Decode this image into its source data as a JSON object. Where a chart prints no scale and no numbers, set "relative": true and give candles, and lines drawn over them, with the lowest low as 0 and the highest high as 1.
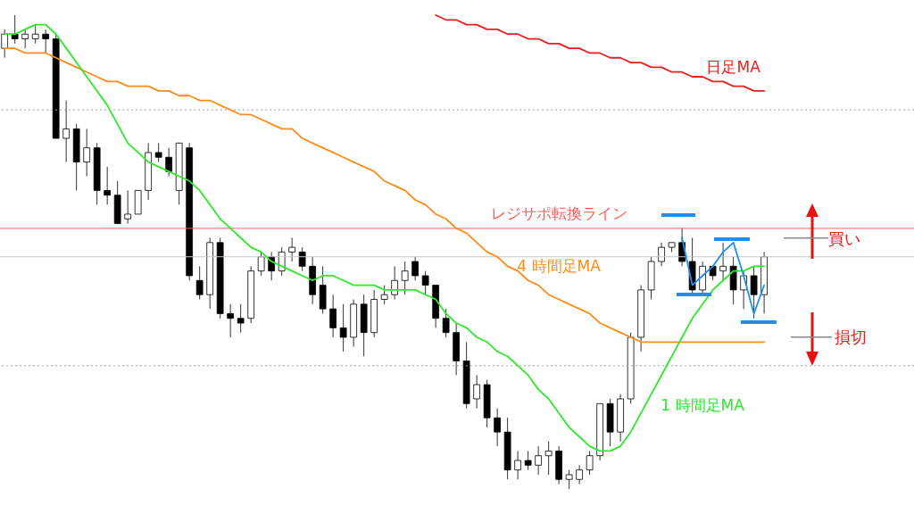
{
  "chart_data": {
    "type": "candlestick",
    "relative": true,
    "categories": [
      null,
      null,
      null,
      null,
      null,
      null,
      null,
      null,
      null,
      null,
      null,
      null,
      null,
      null,
      null,
      null,
      null,
      null,
      null,
      null,
      null,
      null,
      null,
      null,
      null,
      null,
      null,
      null,
      null,
      null,
      null,
      null,
      null,
      null,
      null,
      null,
      null,
      null,
      null,
      null,
      null,
      null,
      null,
      null,
      null,
      null,
      null,
      null,
      null,
      null,
      null,
      null,
      null,
      null,
      null,
      null,
      null,
      null,
      null,
      null,
      null,
      null,
      null,
      null,
      null,
      null,
      null,
      null,
      null,
      null,
      null,
      null,
      null,
      null,
      null
    ],
    "ohlc": [
      [
        0.93,
        0.97,
        0.91,
        0.96
      ],
      [
        0.96,
        1.0,
        0.94,
        0.95
      ],
      [
        0.95,
        0.97,
        0.93,
        0.96
      ],
      [
        0.95,
        0.98,
        0.94,
        0.96
      ],
      [
        0.96,
        0.97,
        0.92,
        0.95
      ],
      [
        0.95,
        0.96,
        0.74,
        0.74
      ],
      [
        0.74,
        0.82,
        0.69,
        0.76
      ],
      [
        0.76,
        0.77,
        0.63,
        0.69
      ],
      [
        0.69,
        0.76,
        0.66,
        0.72
      ],
      [
        0.72,
        0.73,
        0.6,
        0.63
      ],
      [
        0.63,
        0.68,
        0.6,
        0.62
      ],
      [
        0.62,
        0.65,
        0.56,
        0.56
      ],
      [
        0.57,
        0.63,
        0.56,
        0.58
      ],
      [
        0.58,
        0.63,
        0.58,
        0.63
      ],
      [
        0.63,
        0.73,
        0.61,
        0.71
      ],
      [
        0.71,
        0.73,
        0.69,
        0.7
      ],
      [
        0.7,
        0.72,
        0.66,
        0.67
      ],
      [
        0.63,
        0.73,
        0.6,
        0.73
      ],
      [
        0.72,
        0.73,
        0.44,
        0.45
      ],
      [
        0.44,
        0.47,
        0.4,
        0.41
      ],
      [
        0.41,
        0.53,
        0.38,
        0.52
      ],
      [
        0.52,
        0.53,
        0.36,
        0.37
      ],
      [
        0.37,
        0.39,
        0.32,
        0.36
      ],
      [
        0.36,
        0.39,
        0.33,
        0.35
      ],
      [
        0.36,
        0.47,
        0.35,
        0.46
      ],
      [
        0.46,
        0.5,
        0.45,
        0.49
      ],
      [
        0.49,
        0.5,
        0.44,
        0.46
      ],
      [
        0.46,
        0.51,
        0.45,
        0.5
      ],
      [
        0.5,
        0.53,
        0.48,
        0.51
      ],
      [
        0.5,
        0.51,
        0.46,
        0.47
      ],
      [
        0.47,
        0.49,
        0.39,
        0.41
      ],
      [
        0.43,
        0.47,
        0.37,
        0.38
      ],
      [
        0.38,
        0.41,
        0.32,
        0.34
      ],
      [
        0.34,
        0.39,
        0.29,
        0.32
      ],
      [
        0.32,
        0.4,
        0.3,
        0.39
      ],
      [
        0.39,
        0.41,
        0.28,
        0.33
      ],
      [
        0.33,
        0.42,
        0.32,
        0.4
      ],
      [
        0.4,
        0.43,
        0.39,
        0.41
      ],
      [
        0.41,
        0.47,
        0.4,
        0.44
      ],
      [
        0.44,
        0.48,
        0.41,
        0.46
      ],
      [
        0.48,
        0.49,
        0.44,
        0.45
      ],
      [
        0.45,
        0.46,
        0.41,
        0.43
      ],
      [
        0.43,
        0.43,
        0.34,
        0.36
      ],
      [
        0.36,
        0.38,
        0.32,
        0.33
      ],
      [
        0.33,
        0.35,
        0.24,
        0.27
      ],
      [
        0.27,
        0.31,
        0.17,
        0.18
      ],
      [
        0.19,
        0.24,
        0.17,
        0.22
      ],
      [
        0.22,
        0.23,
        0.13,
        0.15
      ],
      [
        0.15,
        0.17,
        0.09,
        0.12
      ],
      [
        0.12,
        0.15,
        0.02,
        0.04
      ],
      [
        0.04,
        0.08,
        0.02,
        0.06
      ],
      [
        0.06,
        0.08,
        0.04,
        0.05
      ],
      [
        0.05,
        0.09,
        0.03,
        0.07
      ],
      [
        0.07,
        0.1,
        0.03,
        0.08
      ],
      [
        0.08,
        0.09,
        0.01,
        0.02
      ],
      [
        0.02,
        0.04,
        0,
        0.03
      ],
      [
        0.02,
        0.05,
        0.01,
        0.04
      ],
      [
        0.04,
        0.08,
        0.03,
        0.07
      ],
      [
        0.07,
        0.18,
        0.06,
        0.18
      ],
      [
        0.18,
        0.19,
        0.09,
        0.12
      ],
      [
        0.12,
        0.2,
        0.1,
        0.19
      ],
      [
        0.19,
        0.33,
        0.18,
        0.32
      ],
      [
        0.32,
        0.43,
        0.29,
        0.42
      ],
      [
        0.42,
        0.49,
        0.4,
        0.48
      ],
      [
        0.48,
        0.52,
        0.47,
        0.51
      ],
      [
        0.51,
        0.52,
        0.5,
        0.52
      ],
      [
        0.52,
        0.55,
        0.47,
        0.48
      ],
      [
        0.48,
        0.53,
        0.41,
        0.42
      ],
      [
        0.42,
        0.48,
        0.41,
        0.47
      ],
      [
        0.47,
        0.47,
        0.44,
        0.45
      ],
      [
        0.46,
        0.52,
        0.44,
        0.47
      ],
      [
        0.47,
        0.49,
        0.39,
        0.42
      ],
      [
        0.42,
        0.46,
        0.38,
        0.45
      ],
      [
        0.45,
        0.47,
        0.36,
        0.41
      ],
      [
        0.41,
        0.5,
        0.37,
        0.49
      ]
    ],
    "series": [
      {
        "name": "日足MA",
        "type": "line",
        "color": "#ee1c1c",
        "values": [
          null,
          null,
          null,
          null,
          null,
          null,
          null,
          null,
          null,
          null,
          null,
          null,
          null,
          null,
          null,
          null,
          null,
          null,
          null,
          null,
          null,
          null,
          null,
          null,
          null,
          null,
          null,
          null,
          null,
          null,
          null,
          null,
          null,
          null,
          null,
          null,
          null,
          null,
          null,
          null,
          null,
          null,
          1.0,
          0.99,
          0.99,
          0.98,
          0.98,
          0.97,
          0.97,
          0.96,
          0.96,
          0.95,
          0.95,
          0.94,
          0.94,
          0.93,
          0.93,
          0.92,
          0.92,
          0.91,
          0.91,
          0.9,
          0.9,
          0.89,
          0.89,
          0.88,
          0.88,
          0.87,
          0.87,
          0.86,
          0.86,
          0.85,
          0.85,
          0.84,
          0.84
        ]
      },
      {
        "name": "4 時間足MA",
        "type": "line",
        "color": "#ff8c1a",
        "values": [
          0.93,
          0.93,
          0.92,
          0.92,
          0.92,
          0.91,
          0.9,
          0.89,
          0.88,
          0.87,
          0.86,
          0.86,
          0.85,
          0.85,
          0.85,
          0.84,
          0.84,
          0.83,
          0.83,
          0.82,
          0.82,
          0.81,
          0.8,
          0.79,
          0.79,
          0.78,
          0.77,
          0.76,
          0.76,
          0.74,
          0.73,
          0.72,
          0.71,
          0.7,
          0.69,
          0.68,
          0.67,
          0.65,
          0.64,
          0.63,
          0.61,
          0.6,
          0.58,
          0.57,
          0.55,
          0.54,
          0.52,
          0.5,
          0.49,
          0.47,
          0.46,
          0.44,
          0.43,
          0.41,
          0.4,
          0.39,
          0.38,
          0.37,
          0.35,
          0.34,
          0.33,
          0.32,
          0.31,
          0.31,
          0.31,
          0.31,
          0.31,
          0.31,
          0.31,
          0.31,
          0.31,
          0.31,
          0.31,
          0.31,
          0.31
        ]
      },
      {
        "name": "1 時間足MA",
        "type": "line",
        "color": "#2ee82e",
        "values": [
          0.96,
          0.96,
          0.97,
          0.98,
          0.98,
          0.96,
          0.93,
          0.9,
          0.87,
          0.84,
          0.81,
          0.77,
          0.73,
          0.71,
          0.69,
          0.68,
          0.67,
          0.66,
          0.65,
          0.63,
          0.6,
          0.57,
          0.55,
          0.53,
          0.51,
          0.5,
          0.48,
          0.47,
          0.46,
          0.45,
          0.44,
          0.45,
          0.45,
          0.44,
          0.43,
          0.43,
          0.43,
          0.42,
          0.42,
          0.42,
          0.42,
          0.41,
          0.4,
          0.37,
          0.35,
          0.34,
          0.32,
          0.31,
          0.29,
          0.28,
          0.26,
          0.24,
          0.21,
          0.19,
          0.16,
          0.13,
          0.11,
          0.09,
          0.08,
          0.08,
          0.09,
          0.12,
          0.16,
          0.2,
          0.24,
          0.28,
          0.32,
          0.36,
          0.39,
          0.42,
          0.44,
          0.46,
          0.46,
          0.47,
          0.47
        ]
      },
      {
        "type": "line",
        "color": "#1e8ff0",
        "values": [
          null,
          null,
          null,
          null,
          null,
          null,
          null,
          null,
          null,
          null,
          null,
          null,
          null,
          null,
          null,
          null,
          null,
          null,
          null,
          null,
          null,
          null,
          null,
          null,
          null,
          null,
          null,
          null,
          null,
          null,
          null,
          null,
          null,
          null,
          null,
          null,
          null,
          null,
          null,
          null,
          null,
          null,
          null,
          null,
          null,
          null,
          null,
          null,
          null,
          null,
          null,
          null,
          null,
          null,
          null,
          null,
          null,
          null,
          null,
          null,
          null,
          null,
          null,
          null,
          null,
          null,
          0.53,
          0.43,
          0.45,
          0.47,
          0.5,
          0.52,
          0.45,
          0.37,
          0.43
        ]
      }
    ],
    "ref_lines": [
      {
        "axis": "y",
        "value": 0.55,
        "label": "レジサポ転換ライン",
        "color": "#ff5a5a"
      },
      {
        "axis": "y",
        "value": 0.49,
        "color": "#c8c8c8"
      },
      {
        "axis": "y",
        "value": 0.8,
        "color": "#a0a0a0",
        "line_style": "dotted"
      },
      {
        "axis": "y",
        "value": 0.26,
        "color": "#a0a0a0",
        "line_style": "dotted"
      }
    ],
    "annotations": [
      "買い",
      "損切"
    ]
  }
}
